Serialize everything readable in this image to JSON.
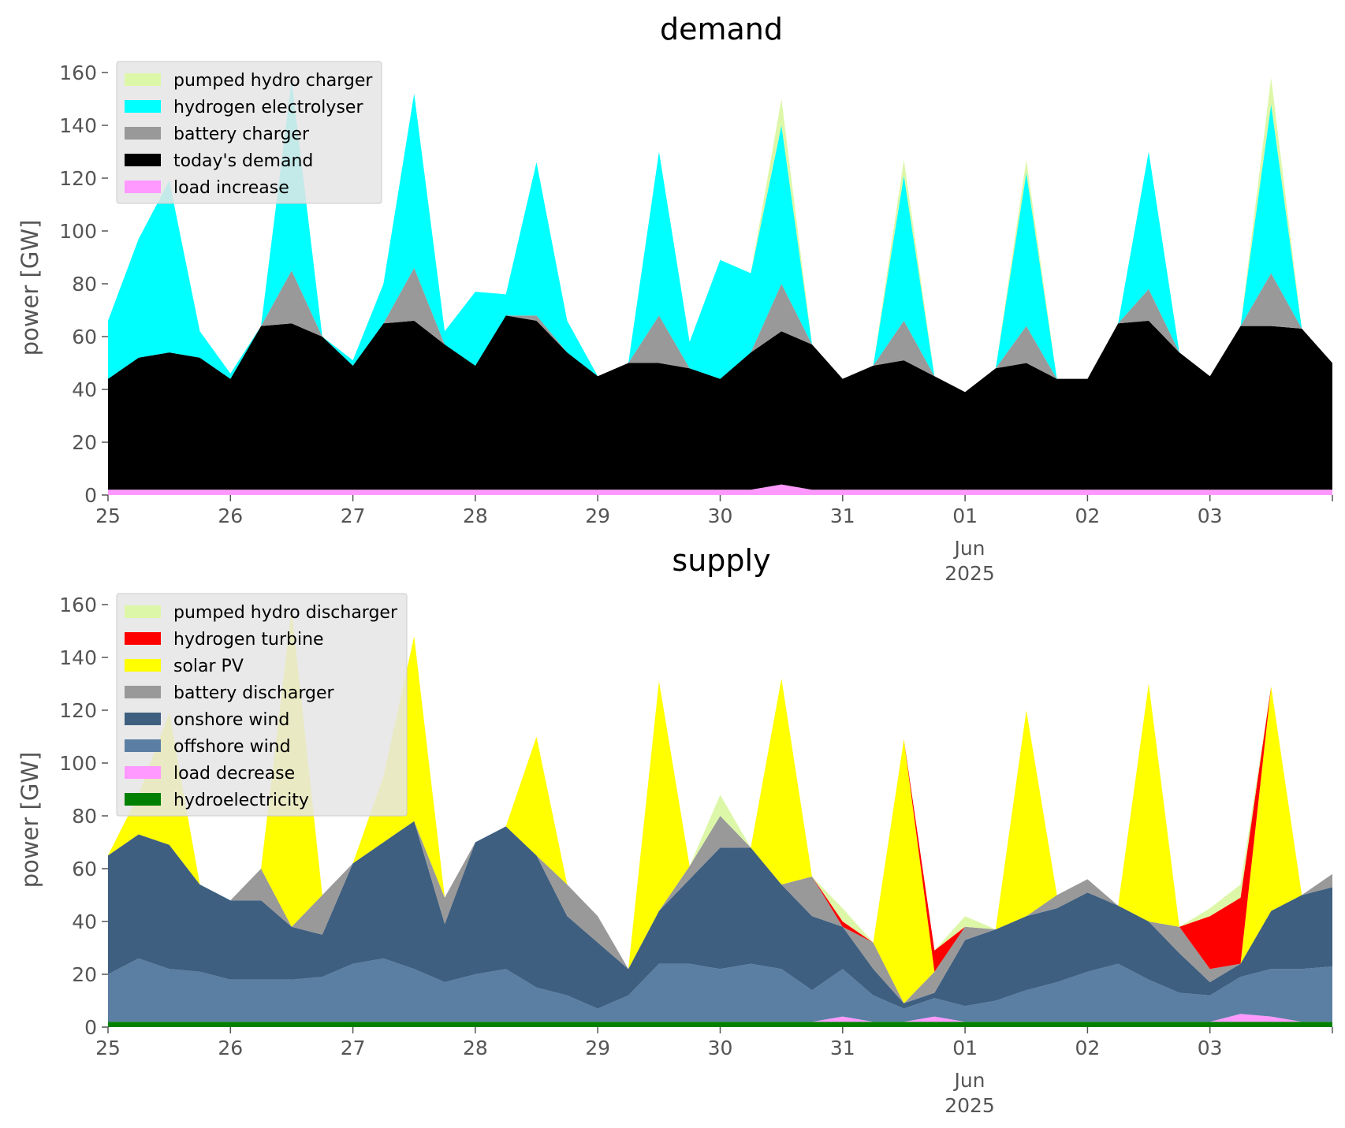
{
  "chart_data": [
    {
      "type": "area",
      "title": "demand",
      "ylabel": "power [GW]",
      "xlabel": "",
      "ylim": [
        0,
        165
      ],
      "yticks": [
        "0",
        "20",
        "40",
        "60",
        "80",
        "100",
        "120",
        "140",
        "160"
      ],
      "xticks": [
        "25",
        "26",
        "27",
        "28",
        "29",
        "30",
        "31",
        "01",
        "02",
        "03"
      ],
      "month_label": "Jun",
      "year_label": "2025",
      "grid": false,
      "legend_position": "top-left",
      "x": [
        0,
        0.25,
        0.5,
        0.75,
        1,
        1.25,
        1.5,
        1.75,
        2,
        2.25,
        2.5,
        2.75,
        3,
        3.25,
        3.5,
        3.75,
        4,
        4.25,
        4.5,
        4.75,
        5,
        5.25,
        5.5,
        5.75,
        6,
        6.25,
        6.5,
        6.75,
        7,
        7.25,
        7.5,
        7.75,
        8,
        8.25,
        8.5,
        8.75,
        9,
        9.25,
        9.5,
        9.75,
        10
      ],
      "series": [
        {
          "name": "load increase",
          "color": "#ff99ff",
          "values": [
            2,
            2,
            2,
            2,
            2,
            2,
            2,
            2,
            2,
            2,
            2,
            2,
            2,
            2,
            2,
            2,
            2,
            2,
            2,
            2,
            2,
            2,
            4,
            2,
            2,
            2,
            2,
            2,
            2,
            2,
            2,
            2,
            2,
            2,
            2,
            2,
            2,
            2,
            2,
            2,
            2
          ]
        },
        {
          "name": "today's demand",
          "color": "#000000",
          "values": [
            42,
            50,
            52,
            50,
            42,
            62,
            63,
            58,
            47,
            63,
            64,
            55,
            47,
            66,
            64,
            52,
            43,
            48,
            48,
            46,
            42,
            52,
            58,
            55,
            42,
            47,
            49,
            43,
            37,
            46,
            48,
            42,
            42,
            63,
            64,
            52,
            43,
            62,
            62,
            61,
            48
          ]
        },
        {
          "name": "battery charger",
          "color": "#999999",
          "values": [
            0,
            0,
            0,
            0,
            0,
            0,
            20,
            0,
            0,
            0,
            20,
            0,
            0,
            0,
            2,
            0,
            0,
            0,
            18,
            0,
            0,
            0,
            18,
            0,
            0,
            0,
            15,
            0,
            0,
            0,
            14,
            0,
            0,
            0,
            12,
            0,
            0,
            0,
            20,
            0,
            0
          ]
        },
        {
          "name": "hydrogen electrolyser",
          "color": "#00ffff",
          "values": [
            22,
            45,
            65,
            10,
            2,
            0,
            72,
            0,
            2,
            15,
            66,
            5,
            28,
            8,
            58,
            12,
            0,
            0,
            62,
            10,
            45,
            30,
            60,
            0,
            0,
            0,
            55,
            0,
            0,
            0,
            58,
            0,
            0,
            0,
            52,
            0,
            0,
            0,
            64,
            0,
            0
          ]
        },
        {
          "name": "pumped hydro charger",
          "color": "#ddf7a8",
          "values": [
            0,
            0,
            0,
            0,
            0,
            0,
            0,
            0,
            0,
            0,
            0,
            0,
            0,
            0,
            0,
            0,
            0,
            0,
            0,
            0,
            0,
            0,
            10,
            0,
            0,
            0,
            6,
            0,
            0,
            0,
            5,
            0,
            0,
            0,
            0,
            0,
            0,
            0,
            10,
            0,
            0
          ]
        }
      ]
    },
    {
      "type": "area",
      "title": "supply",
      "ylabel": "power [GW]",
      "xlabel": "",
      "ylim": [
        0,
        165
      ],
      "yticks": [
        "0",
        "20",
        "40",
        "60",
        "80",
        "100",
        "120",
        "140",
        "160"
      ],
      "xticks": [
        "25",
        "26",
        "27",
        "28",
        "29",
        "30",
        "31",
        "01",
        "02",
        "03"
      ],
      "month_label": "Jun",
      "year_label": "2025",
      "grid": false,
      "legend_position": "top-left",
      "x": [
        0,
        0.25,
        0.5,
        0.75,
        1,
        1.25,
        1.5,
        1.75,
        2,
        2.25,
        2.5,
        2.75,
        3,
        3.25,
        3.5,
        3.75,
        4,
        4.25,
        4.5,
        4.75,
        5,
        5.25,
        5.5,
        5.75,
        6,
        6.25,
        6.5,
        6.75,
        7,
        7.25,
        7.5,
        7.75,
        8,
        8.25,
        8.5,
        8.75,
        9,
        9.25,
        9.5,
        9.75,
        10
      ],
      "series": [
        {
          "name": "hydroelectricity",
          "color": "#008000",
          "values": [
            2,
            2,
            2,
            2,
            2,
            2,
            2,
            2,
            2,
            2,
            2,
            2,
            2,
            2,
            2,
            2,
            2,
            2,
            2,
            2,
            2,
            2,
            2,
            2,
            2,
            2,
            2,
            2,
            2,
            2,
            2,
            2,
            2,
            2,
            2,
            2,
            2,
            2,
            2,
            2,
            2
          ]
        },
        {
          "name": "load decrease",
          "color": "#ff99ff",
          "values": [
            0,
            0,
            0,
            0,
            0,
            0,
            0,
            0,
            0,
            0,
            0,
            0,
            0,
            0,
            0,
            0,
            0,
            0,
            0,
            0,
            0,
            0,
            0,
            0,
            2,
            0,
            0,
            2,
            0,
            0,
            0,
            0,
            0,
            0,
            0,
            0,
            0,
            3,
            2,
            0,
            0
          ]
        },
        {
          "name": "offshore wind",
          "color": "#5b7fa3",
          "values": [
            18,
            24,
            20,
            19,
            16,
            16,
            16,
            17,
            22,
            24,
            20,
            15,
            18,
            20,
            13,
            10,
            5,
            10,
            22,
            22,
            20,
            22,
            20,
            12,
            18,
            10,
            5,
            7,
            6,
            8,
            12,
            15,
            19,
            22,
            16,
            11,
            10,
            14,
            18,
            20,
            21
          ]
        },
        {
          "name": "onshore wind",
          "color": "#3e5f80",
          "values": [
            45,
            47,
            47,
            33,
            30,
            30,
            20,
            16,
            38,
            44,
            56,
            22,
            50,
            54,
            50,
            30,
            25,
            10,
            20,
            32,
            46,
            44,
            32,
            28,
            16,
            10,
            2,
            2,
            25,
            27,
            28,
            28,
            30,
            22,
            22,
            15,
            5,
            5,
            22,
            28,
            30
          ]
        },
        {
          "name": "battery discharger",
          "color": "#999999",
          "values": [
            0,
            0,
            0,
            0,
            0,
            12,
            0,
            15,
            0,
            0,
            0,
            10,
            0,
            0,
            0,
            12,
            10,
            0,
            0,
            5,
            12,
            0,
            0,
            15,
            0,
            10,
            0,
            8,
            5,
            0,
            0,
            5,
            5,
            0,
            0,
            10,
            5,
            0,
            0,
            0,
            5
          ]
        },
        {
          "name": "solar PV",
          "color": "#ffff00",
          "values": [
            0,
            15,
            50,
            0,
            0,
            0,
            120,
            0,
            0,
            25,
            70,
            0,
            0,
            0,
            45,
            0,
            0,
            0,
            87,
            0,
            0,
            0,
            78,
            0,
            0,
            0,
            100,
            0,
            0,
            0,
            78,
            0,
            0,
            0,
            90,
            0,
            0,
            0,
            85,
            0,
            0
          ]
        },
        {
          "name": "hydrogen turbine",
          "color": "#ff0000",
          "values": [
            0,
            0,
            0,
            0,
            0,
            0,
            0,
            0,
            0,
            0,
            0,
            0,
            0,
            0,
            0,
            0,
            0,
            0,
            0,
            0,
            0,
            0,
            0,
            0,
            2,
            0,
            0,
            8,
            0,
            0,
            0,
            0,
            0,
            0,
            0,
            0,
            20,
            25,
            0,
            0,
            0
          ]
        },
        {
          "name": "pumped hydro discharger",
          "color": "#ddf7a8",
          "values": [
            0,
            0,
            0,
            0,
            0,
            0,
            0,
            0,
            0,
            0,
            0,
            0,
            0,
            0,
            0,
            0,
            0,
            0,
            0,
            0,
            8,
            0,
            0,
            0,
            5,
            0,
            0,
            0,
            4,
            0,
            0,
            0,
            0,
            0,
            0,
            0,
            3,
            5,
            0,
            0,
            0
          ]
        }
      ]
    }
  ]
}
